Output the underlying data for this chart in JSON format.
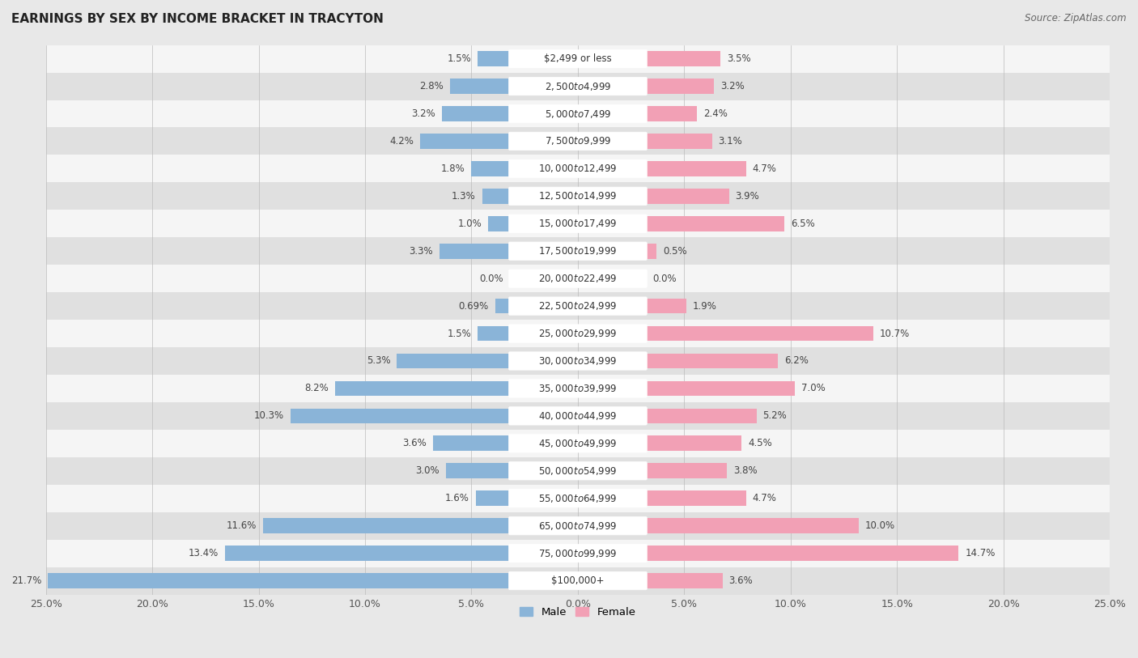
{
  "title": "EARNINGS BY SEX BY INCOME BRACKET IN TRACYTON",
  "source": "Source: ZipAtlas.com",
  "categories": [
    "$2,499 or less",
    "$2,500 to $4,999",
    "$5,000 to $7,499",
    "$7,500 to $9,999",
    "$10,000 to $12,499",
    "$12,500 to $14,999",
    "$15,000 to $17,499",
    "$17,500 to $19,999",
    "$20,000 to $22,499",
    "$22,500 to $24,999",
    "$25,000 to $29,999",
    "$30,000 to $34,999",
    "$35,000 to $39,999",
    "$40,000 to $44,999",
    "$45,000 to $49,999",
    "$50,000 to $54,999",
    "$55,000 to $64,999",
    "$65,000 to $74,999",
    "$75,000 to $99,999",
    "$100,000+"
  ],
  "male": [
    1.5,
    2.8,
    3.2,
    4.2,
    1.8,
    1.3,
    1.0,
    3.3,
    0.0,
    0.69,
    1.5,
    5.3,
    8.2,
    10.3,
    3.6,
    3.0,
    1.6,
    11.6,
    13.4,
    21.7
  ],
  "female": [
    3.5,
    3.2,
    2.4,
    3.1,
    4.7,
    3.9,
    6.5,
    0.5,
    0.0,
    1.9,
    10.7,
    6.2,
    7.0,
    5.2,
    4.5,
    3.8,
    4.7,
    10.0,
    14.7,
    3.6
  ],
  "male_color": "#8ab4d8",
  "female_color": "#f2a0b5",
  "xlim": 25.0,
  "bg_color": "#e8e8e8",
  "bar_bg_color": "#f5f5f5",
  "row_alt_color": "#e0e0e0",
  "title_fontsize": 11,
  "label_fontsize": 8.5,
  "category_fontsize": 8.5,
  "source_fontsize": 8.5
}
